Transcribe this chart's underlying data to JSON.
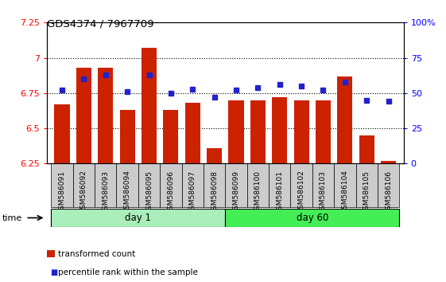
{
  "title": "GDS4374 / 7967709",
  "samples": [
    "GSM586091",
    "GSM586092",
    "GSM586093",
    "GSM586094",
    "GSM586095",
    "GSM586096",
    "GSM586097",
    "GSM586098",
    "GSM586099",
    "GSM586100",
    "GSM586101",
    "GSM586102",
    "GSM586103",
    "GSM586104",
    "GSM586105",
    "GSM586106"
  ],
  "bar_values": [
    6.67,
    6.93,
    6.93,
    6.63,
    7.07,
    6.63,
    6.68,
    6.36,
    6.7,
    6.7,
    6.72,
    6.7,
    6.7,
    6.87,
    6.45,
    6.27
  ],
  "percentile_values": [
    52,
    60,
    63,
    51,
    63,
    50,
    53,
    47,
    52,
    54,
    56,
    55,
    52,
    58,
    45,
    44
  ],
  "ylim_left": [
    6.25,
    7.25
  ],
  "ylim_right": [
    0,
    100
  ],
  "yticks_left": [
    6.25,
    6.5,
    6.75,
    7.0,
    7.25
  ],
  "ytick_labels_left": [
    "6.25",
    "6.5",
    "6.75",
    "7",
    "7.25"
  ],
  "yticks_right": [
    0,
    25,
    50,
    75,
    100
  ],
  "ytick_labels_right": [
    "0",
    "25",
    "50",
    "75",
    "100%"
  ],
  "grid_yticks": [
    6.5,
    6.75,
    7.0
  ],
  "bar_color": "#cc2200",
  "blue_color": "#2222cc",
  "day1_color": "#aaeebb",
  "day60_color": "#44ee55",
  "day1_samples": 8,
  "day60_samples": 8,
  "bar_width": 0.7,
  "base_value": 6.25,
  "xtick_bg_color": "#cccccc",
  "spine_color": "#000000"
}
